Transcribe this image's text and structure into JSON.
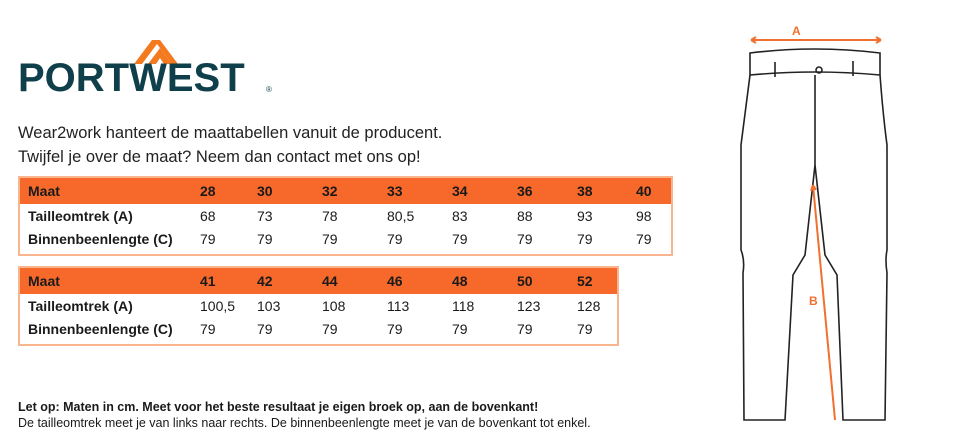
{
  "logo": {
    "text": "PORTWEST",
    "registered": "®"
  },
  "intro": {
    "line1": "Wear2work hanteert de maattabellen vanuit de producent.",
    "line2": "Twijfel je over de maat? Neem dan contact met ons op!"
  },
  "tables": [
    {
      "header": "Maat",
      "sizes": [
        "28",
        "30",
        "32",
        "33",
        "34",
        "36",
        "38",
        "40"
      ],
      "rows": [
        {
          "label": "Tailleomtrek (A)",
          "values": [
            "68",
            "73",
            "78",
            "80,5",
            "83",
            "88",
            "93",
            "98"
          ]
        },
        {
          "label": "Binnenbeenlengte (C)",
          "values": [
            "79",
            "79",
            "79",
            "79",
            "79",
            "79",
            "79",
            "79"
          ]
        }
      ]
    },
    {
      "header": "Maat",
      "sizes": [
        "41",
        "42",
        "44",
        "46",
        "48",
        "50",
        "52"
      ],
      "rows": [
        {
          "label": "Tailleomtrek (A)",
          "values": [
            "100,5",
            "103",
            "108",
            "113",
            "118",
            "123",
            "128"
          ]
        },
        {
          "label": "Binnenbeenlengte (C)",
          "values": [
            "79",
            "79",
            "79",
            "79",
            "79",
            "79",
            "79"
          ]
        }
      ]
    }
  ],
  "note": {
    "bold": "Let op: Maten in cm. Meet voor het beste resultaat je eigen broek op, aan de bovenkant!",
    "line2": "De tailleomtrek meet je van links naar rechts. De binnenbeenlengte meet je van de bovenkant tot enkel."
  },
  "diagram": {
    "label_a": "A",
    "label_b": "B"
  },
  "colors": {
    "accent": "#f7692a",
    "logo": "#0f3f4a",
    "border": "#f9b58e"
  }
}
